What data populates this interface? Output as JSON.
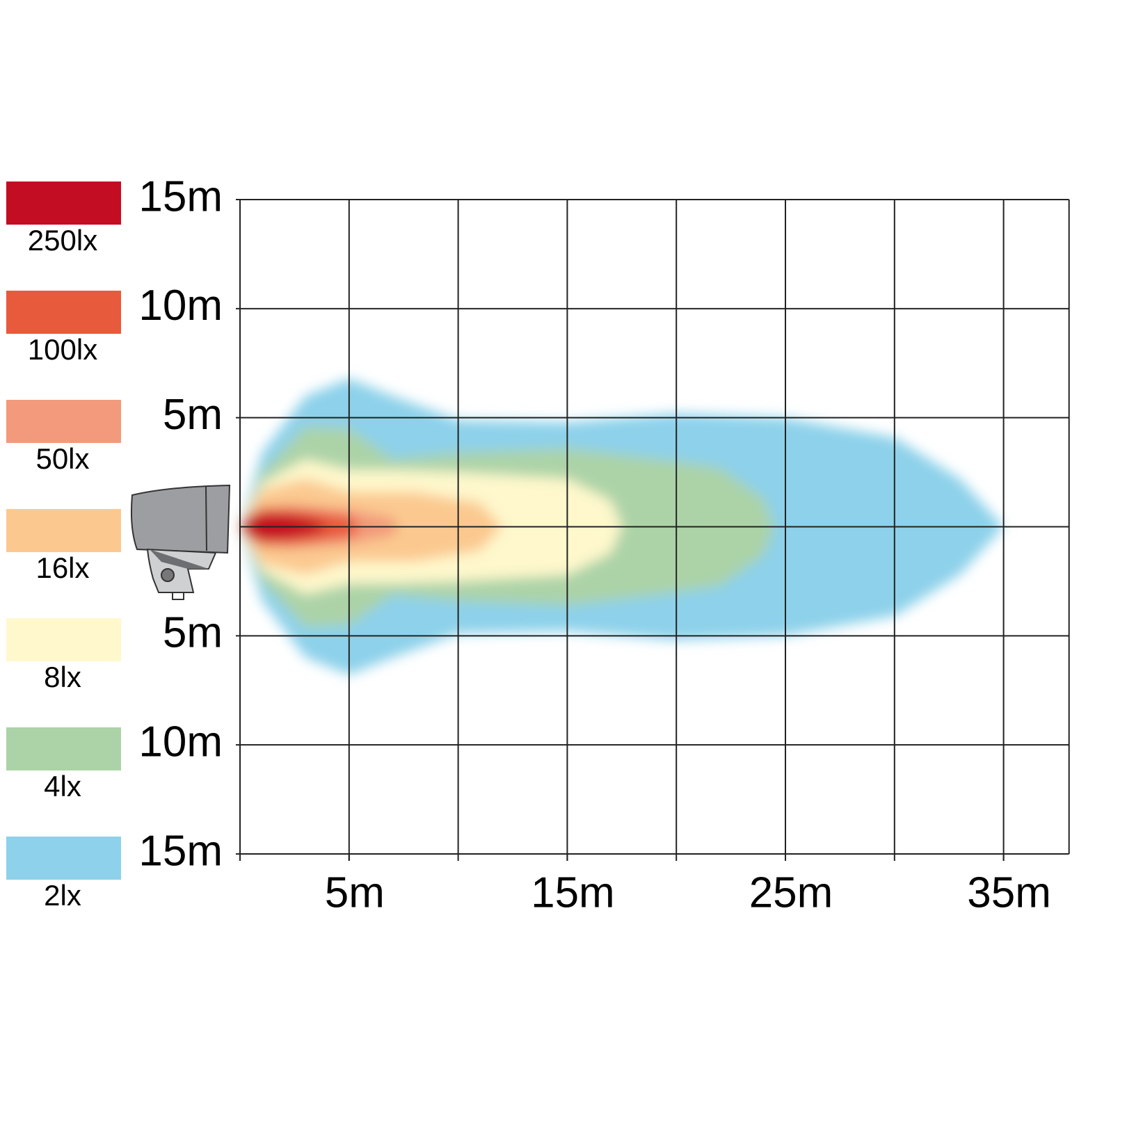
{
  "chart_data": {
    "type": "beam",
    "xlim": [
      0,
      38
    ],
    "ylim": [
      -15,
      15
    ],
    "xgrid": [
      0,
      5,
      10,
      15,
      20,
      25,
      30,
      35
    ],
    "ygrid": [
      -15,
      -10,
      -5,
      0,
      5,
      10,
      15
    ],
    "xticks": [
      {
        "value": 5,
        "label": "5m"
      },
      {
        "value": 15,
        "label": "15m"
      },
      {
        "value": 25,
        "label": "25m"
      },
      {
        "value": 35,
        "label": "35m"
      }
    ],
    "yticks": [
      {
        "value": 15,
        "label": "15m"
      },
      {
        "value": 10,
        "label": "10m"
      },
      {
        "value": 5,
        "label": "5m"
      },
      {
        "value": -5,
        "label": "5m"
      },
      {
        "value": -10,
        "label": "10m"
      },
      {
        "value": -15,
        "label": "15m"
      }
    ],
    "series": [
      {
        "name": "250lx",
        "color": "#c30d22",
        "x": [
          0,
          0.5,
          2,
          3.5,
          4
        ],
        "values": [
          0,
          0.6,
          0.6,
          0.3,
          0
        ]
      },
      {
        "name": "100lx",
        "color": "#e85a3c",
        "x": [
          0,
          1,
          3,
          5,
          5.5
        ],
        "values": [
          0,
          0.9,
          0.8,
          0.5,
          0
        ]
      },
      {
        "name": "50lx",
        "color": "#f29a7b",
        "x": [
          0,
          2,
          5,
          7,
          7.3
        ],
        "values": [
          0,
          1.0,
          0.8,
          0.4,
          0
        ]
      },
      {
        "name": "16lx",
        "color": "#fbc990",
        "x": [
          0,
          1,
          3,
          5,
          8,
          11,
          12
        ],
        "values": [
          0,
          1.7,
          2.2,
          1.6,
          1.6,
          1.1,
          0
        ]
      },
      {
        "name": "8lx",
        "color": "#fef8cc",
        "x": [
          0,
          1,
          3,
          5,
          7,
          10,
          15,
          17,
          17.5
        ],
        "values": [
          0,
          2,
          3.1,
          2.6,
          2.6,
          2.5,
          2.2,
          1.2,
          0
        ]
      },
      {
        "name": "4lx",
        "color": "#acd3a7",
        "x": [
          0,
          1,
          3,
          5,
          7,
          10,
          15,
          20,
          22,
          24,
          24.5
        ],
        "values": [
          0,
          2.5,
          4.6,
          4.5,
          3.1,
          3.4,
          3.6,
          3,
          2.7,
          1.3,
          0
        ]
      },
      {
        "name": "2lx",
        "color": "#8dd1ea",
        "x": [
          0,
          1,
          3,
          5,
          7,
          10,
          15,
          20,
          25,
          30,
          33,
          35
        ],
        "values": [
          0,
          3.4,
          6,
          6.8,
          6,
          4.9,
          4.8,
          5.2,
          5,
          4.1,
          2.2,
          0
        ]
      }
    ]
  }
}
